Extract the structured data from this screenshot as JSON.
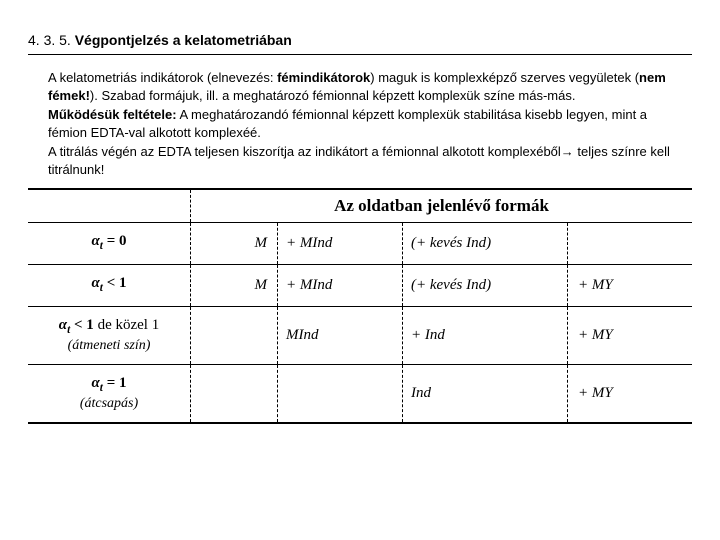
{
  "header": {
    "number": "4. 3. 5. ",
    "title": "Végpontjelzés a kelatometriában"
  },
  "body": {
    "p1_a": "A kelatometriás indikátorok (elnevezés: ",
    "p1_b": "fémindikátorok",
    "p1_c": ") maguk is komplexképző szerves vegyületek (",
    "p1_d": "nem fémek!",
    "p1_e": "). Szabad formájuk, ill. a meghatározó fémionnal képzett komplexük színe más-más.",
    "p2_a": "Működésük feltétele:",
    "p2_b": " A meghatározandó fémionnal képzett komplexük stabilitása kisebb legyen, mint a fémion EDTA-val alkotott komplexéé.",
    "p3": "A titrálás végén az EDTA teljesen kiszorítja az indikátort a fémionnal alkotott komplexéből→ teljes színre kell titrálnunk!"
  },
  "table": {
    "header_title": "Az oldatban jelenlévő formák",
    "rows": [
      {
        "alpha_html": "<span class='bolditalic'>α<span class='sub'>t</span></span> = 0",
        "note": "",
        "c1": "M",
        "c2": "+ MInd",
        "c3": "(+ kevés Ind)",
        "c4": ""
      },
      {
        "alpha_html": "<span class='bolditalic'>α<span class='sub'>t</span></span> &lt; 1",
        "note": "",
        "c1": "M",
        "c2": "+ MInd",
        "c3": "(+ kevés Ind)",
        "c4": "+ MY"
      },
      {
        "alpha_html": "<span class='bolditalic'>α<span class='sub'>t</span></span> &lt; 1 <span style='font-weight:normal'>de közel 1</span>",
        "note": "(átmeneti szín)",
        "c1": "",
        "c2": "MInd",
        "c3": "+ Ind",
        "c4": "+ MY"
      },
      {
        "alpha_html": "<span class='bolditalic'>α<span class='sub'>t</span></span> = 1",
        "note": "(átcsapás)",
        "c1": "",
        "c2": "",
        "c3": "Ind",
        "c4": "+ MY"
      }
    ]
  },
  "colors": {
    "text": "#000000",
    "bg": "#ffffff",
    "rule": "#000000"
  }
}
